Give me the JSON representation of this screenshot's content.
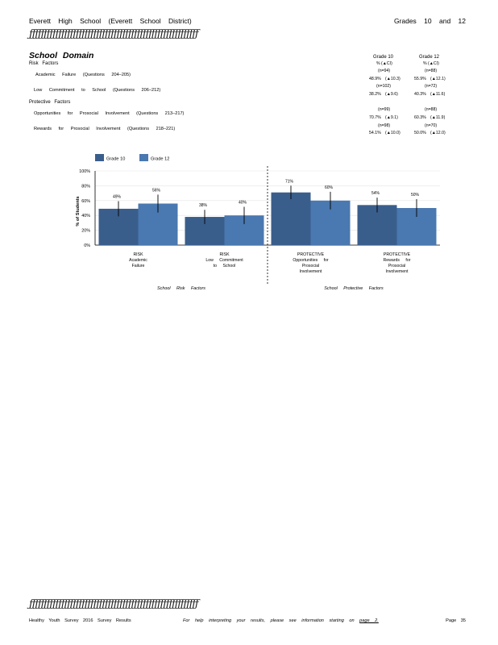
{
  "header": {
    "school": "Everett High School (Everett School District)",
    "grades": "Grades 10 and 12",
    "rule_text": "ƒƒƒƒƒƒƒƒƒƒƒƒƒƒƒƒƒƒƒƒƒƒƒƒƒƒƒƒƒƒƒƒƒƒƒƒƒƒƒƒƒƒƒƒƒƒƒƒƒƒƒƒƒƒƒƒƒƒ"
  },
  "section": {
    "title": "School Domain",
    "risk_heading": "Risk Factors",
    "protective_heading": "Protective Factors",
    "rows": [
      {
        "label": "Academic Failure (Questions 204–205)",
        "g10_n": "(n=94)",
        "g12_n": "(n=88)",
        "g10_pct": "48.9%",
        "g10_ci": "(▲10.3)",
        "g12_pct": "55.9%",
        "g12_ci": "(▲12.1)"
      },
      {
        "label": "Low Commitment to School (Questions 206–212)",
        "g10_n": "(n=102)",
        "g12_n": "(n=72)",
        "g10_pct": "38.2%",
        "g10_ci": "(▲9.6)",
        "g12_pct": "40.3%",
        "g12_ci": "(▲11.6)"
      },
      {
        "label": "Opportunities for Prosocial Involvement (Questions 213–217)",
        "g10_n": "(n=99)",
        "g12_n": "(n=88)",
        "g10_pct": "70.7%",
        "g10_ci": "(▲9.1)",
        "g12_pct": "60.3%",
        "g12_ci": "(▲11.9)"
      },
      {
        "label": "Rewards for Prosocial Involvement (Questions 218–221)",
        "g10_n": "(n=98)",
        "g12_n": "(n=70)",
        "g10_pct": "54.1%",
        "g10_ci": "(▲10.0)",
        "g12_pct": "50.0%",
        "g12_ci": "(▲12.0)"
      }
    ],
    "col_g10": "Grade 10",
    "col_g12": "Grade 12",
    "col_g10_sub": "% (▲CI)",
    "col_g12_sub": "% (▲CI)"
  },
  "chart_data": {
    "type": "bar",
    "ylabel": "% of Students",
    "ylim": [
      0,
      100
    ],
    "yticks": [
      "0%",
      "20%",
      "40%",
      "60%",
      "80%",
      "100%"
    ],
    "categories": [
      [
        "RISK",
        "Academic",
        "Failure"
      ],
      [
        "RISK",
        "Low Commitment",
        "to School"
      ],
      [
        "PROTECTIVE",
        "Opportunities for",
        "Prosocial",
        "Involvement"
      ],
      [
        "PROTECTIVE",
        "Rewards for",
        "Prosocial",
        "Involvement"
      ]
    ],
    "series": [
      {
        "name": "Grade 10",
        "color": "#3a5e8c",
        "values": [
          49,
          38,
          71,
          54
        ],
        "labels": [
          "49%",
          "38%",
          "71%",
          "54%"
        ],
        "ci": [
          10.3,
          9.6,
          9.1,
          10.0
        ]
      },
      {
        "name": "Grade 12",
        "color": "#4a78b0",
        "values": [
          56,
          40,
          60,
          50
        ],
        "labels": [
          "56%",
          "40%",
          "60%",
          "50%"
        ],
        "ci": [
          12.1,
          11.6,
          11.9,
          12.0
        ]
      }
    ],
    "group_labels": [
      "School Risk Factors",
      "School Protective Factors"
    ],
    "grid": true,
    "legend": "top-left"
  },
  "footer": {
    "left": "Healthy Youth Survey 2016 Survey Results",
    "middle": "For help interpreting your results, please see information starting on",
    "link": "page 2.",
    "right": "Page 35"
  }
}
